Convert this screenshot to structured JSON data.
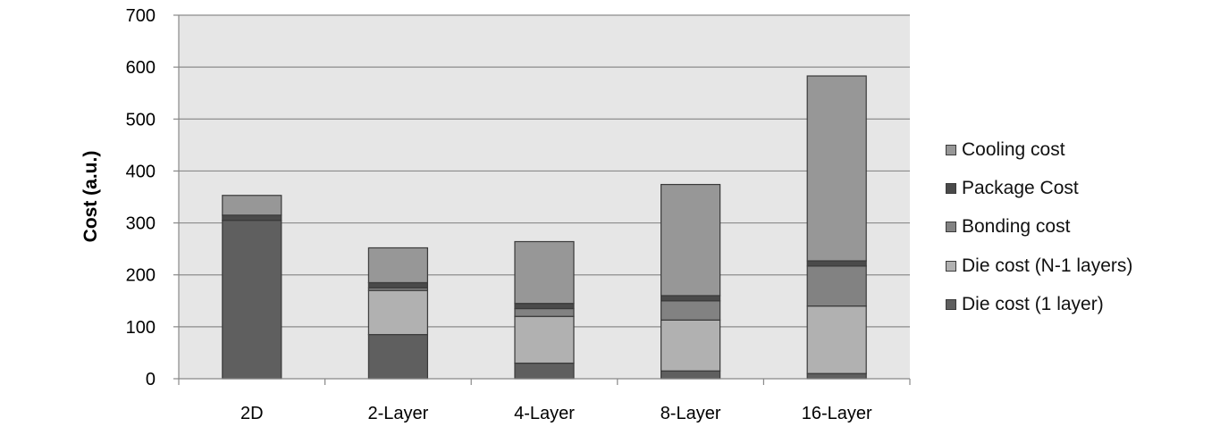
{
  "chart_data": {
    "type": "bar",
    "stacked": true,
    "categories": [
      "2D",
      "2-Layer",
      "4-Layer",
      "8-Layer",
      "16-Layer"
    ],
    "ylabel": "Cost (a.u.)",
    "xlabel": "",
    "ylim": [
      0,
      700
    ],
    "yticks": [
      0,
      100,
      200,
      300,
      400,
      500,
      600,
      700
    ],
    "grid": true,
    "legend_position": "right",
    "series": [
      {
        "name": "Die cost (1 layer)",
        "color": "#5f5f5f",
        "values": [
          305,
          85,
          30,
          15,
          10
        ]
      },
      {
        "name": "Die cost (N-1 layers)",
        "color": "#b1b1b1",
        "values": [
          0,
          85,
          90,
          98,
          130
        ]
      },
      {
        "name": "Bonding cost",
        "color": "#828282",
        "values": [
          0,
          5,
          15,
          37,
          77
        ]
      },
      {
        "name": "Package Cost",
        "color": "#4a4a4a",
        "values": [
          10,
          10,
          10,
          10,
          10
        ]
      },
      {
        "name": "Cooling cost",
        "color": "#979797",
        "values": [
          38,
          67,
          119,
          214,
          356
        ]
      }
    ]
  }
}
